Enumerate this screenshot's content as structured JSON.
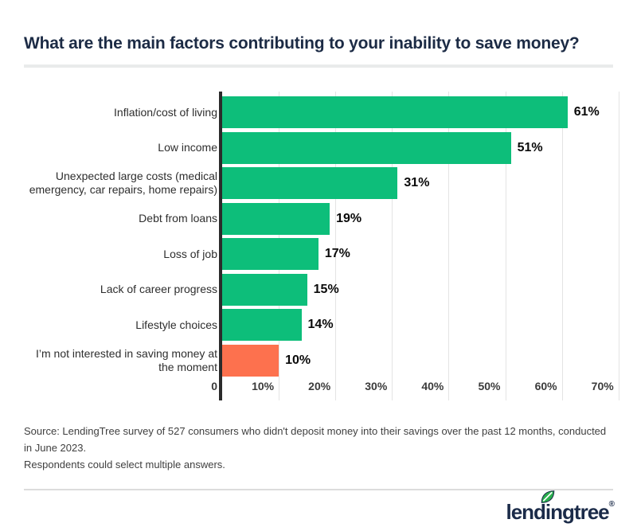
{
  "header": {
    "title": "What are the main factors contributing to your inability to save money?"
  },
  "chart_data": {
    "type": "bar",
    "orientation": "horizontal",
    "title": "What are the main factors contributing to your inability to save money?",
    "categories": [
      "Inflation/cost of living",
      "Low income",
      "Unexpected large costs (medical\nemergency, car repairs, home repairs)",
      "Debt from loans",
      "Loss of job",
      "Lack of career progress",
      "Lifestyle choices",
      "I’m not interested in saving money at\nthe moment"
    ],
    "values": [
      61,
      51,
      31,
      19,
      17,
      15,
      14,
      10
    ],
    "value_labels": [
      "61%",
      "51%",
      "31%",
      "19%",
      "17%",
      "15%",
      "14%",
      "10%"
    ],
    "bar_colors": [
      "#0dbe7a",
      "#0dbe7a",
      "#0dbe7a",
      "#0dbe7a",
      "#0dbe7a",
      "#0dbe7a",
      "#0dbe7a",
      "#fd714e"
    ],
    "xlabel": "",
    "ylabel": "",
    "xlim": [
      0,
      70
    ],
    "x_ticks": [
      {
        "label": "0",
        "value": 0
      },
      {
        "label": "10%",
        "value": 10
      },
      {
        "label": "20%",
        "value": 20
      },
      {
        "label": "30%",
        "value": 30
      },
      {
        "label": "40%",
        "value": 40
      },
      {
        "label": "50%",
        "value": 50
      },
      {
        "label": "60%",
        "value": 60
      },
      {
        "label": "70%",
        "value": 70
      }
    ],
    "grid": "vertical-light",
    "legend": "none"
  },
  "colors": {
    "bar_green": "#0dbe7a",
    "bar_orange": "#fd714e",
    "navy": "#1b2b49",
    "grid_line": "#e4e4e4",
    "axis_line": "#2b2b2b"
  },
  "source": {
    "text": "Source: LendingTree survey of 527 consumers who didn't deposit money into their savings over the past 12 months, conducted in June 2023.\nRespondents could select multiple answers."
  },
  "footer": {
    "logo": {
      "part1": "lend",
      "part2": "i",
      "part3": "ngtree",
      "registered": "®",
      "leaf_color": "#2aaf4d"
    }
  }
}
